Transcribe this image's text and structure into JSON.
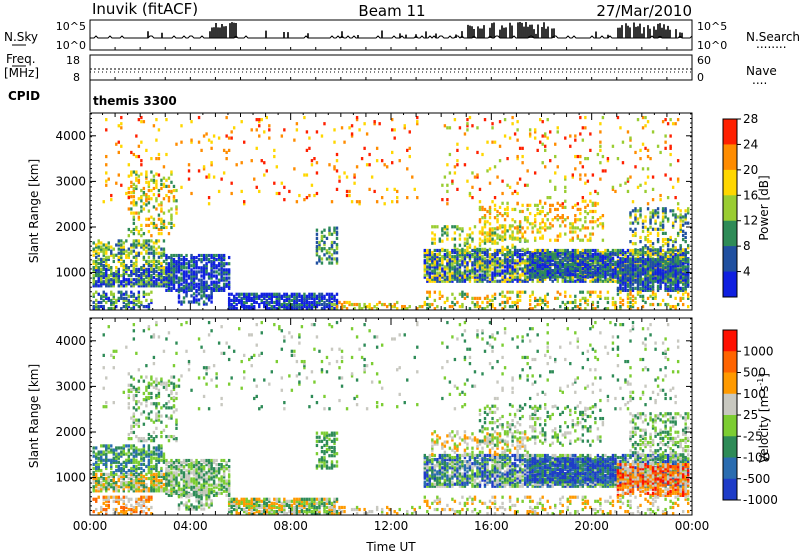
{
  "header": {
    "station": "Inuvik (fitACF)",
    "beam": "Beam 11",
    "date": "27/Mar/2010"
  },
  "nsky_panel": {
    "left_label": "N.Sky",
    "left_ticks": [
      "10^5",
      "10^0"
    ],
    "right_ticks": [
      "10^5",
      "10^0"
    ],
    "right_label": "N.Search",
    "right_legend": "........"
  },
  "freq_panel": {
    "label_top": "Freq.",
    "label_unit": "[MHz]",
    "left_ticks": [
      "18",
      "8"
    ],
    "right_ticks": [
      "60",
      "0"
    ],
    "right_label": "Nave",
    "right_legend": "....",
    "cpid_label": "CPID",
    "cpid_value": "themis 3300"
  },
  "chart_data": [
    {
      "type": "heatmap",
      "name": "power",
      "ylabel": "Slant Range [km]",
      "xlabel": "",
      "xlim": [
        "00:00",
        "24:00"
      ],
      "ylim": [
        180,
        4500
      ],
      "x_ticks": [
        "00:00",
        "04:00",
        "08:00",
        "12:00",
        "16:00",
        "20:00",
        "00:00"
      ],
      "y_ticks": [
        "1000",
        "2000",
        "3000",
        "4000"
      ],
      "colorbar": {
        "label": "Power [dB]",
        "ticks": [
          "4",
          "8",
          "12",
          "16",
          "20",
          "24",
          "28"
        ],
        "colors": [
          "#1020e0",
          "#2050a0",
          "#2e8b57",
          "#9acd32",
          "#ffd700",
          "#ff8c00",
          "#ff2000"
        ]
      }
    },
    {
      "type": "heatmap",
      "name": "velocity",
      "ylabel": "Slant Range [km]",
      "xlabel": "Time UT",
      "xlim": [
        "00:00",
        "24:00"
      ],
      "ylim": [
        180,
        4500
      ],
      "x_ticks": [
        "00:00",
        "04:00",
        "08:00",
        "12:00",
        "16:00",
        "20:00",
        "00:00"
      ],
      "y_ticks": [
        "1000",
        "2000",
        "3000",
        "4000"
      ],
      "colorbar": {
        "label": "Velocity [m s",
        "label_sup": "-1",
        "label_end": "]",
        "ticks": [
          "1000",
          "500",
          "100",
          "25",
          "-25",
          "-100",
          "-500",
          "-1000"
        ],
        "colors": [
          "#1e3cc8",
          "#2a6cb0",
          "#2e8b57",
          "#7ccd32",
          "#c8c8c0",
          "#ff9a00",
          "#ff6400",
          "#ff1000"
        ]
      }
    }
  ]
}
